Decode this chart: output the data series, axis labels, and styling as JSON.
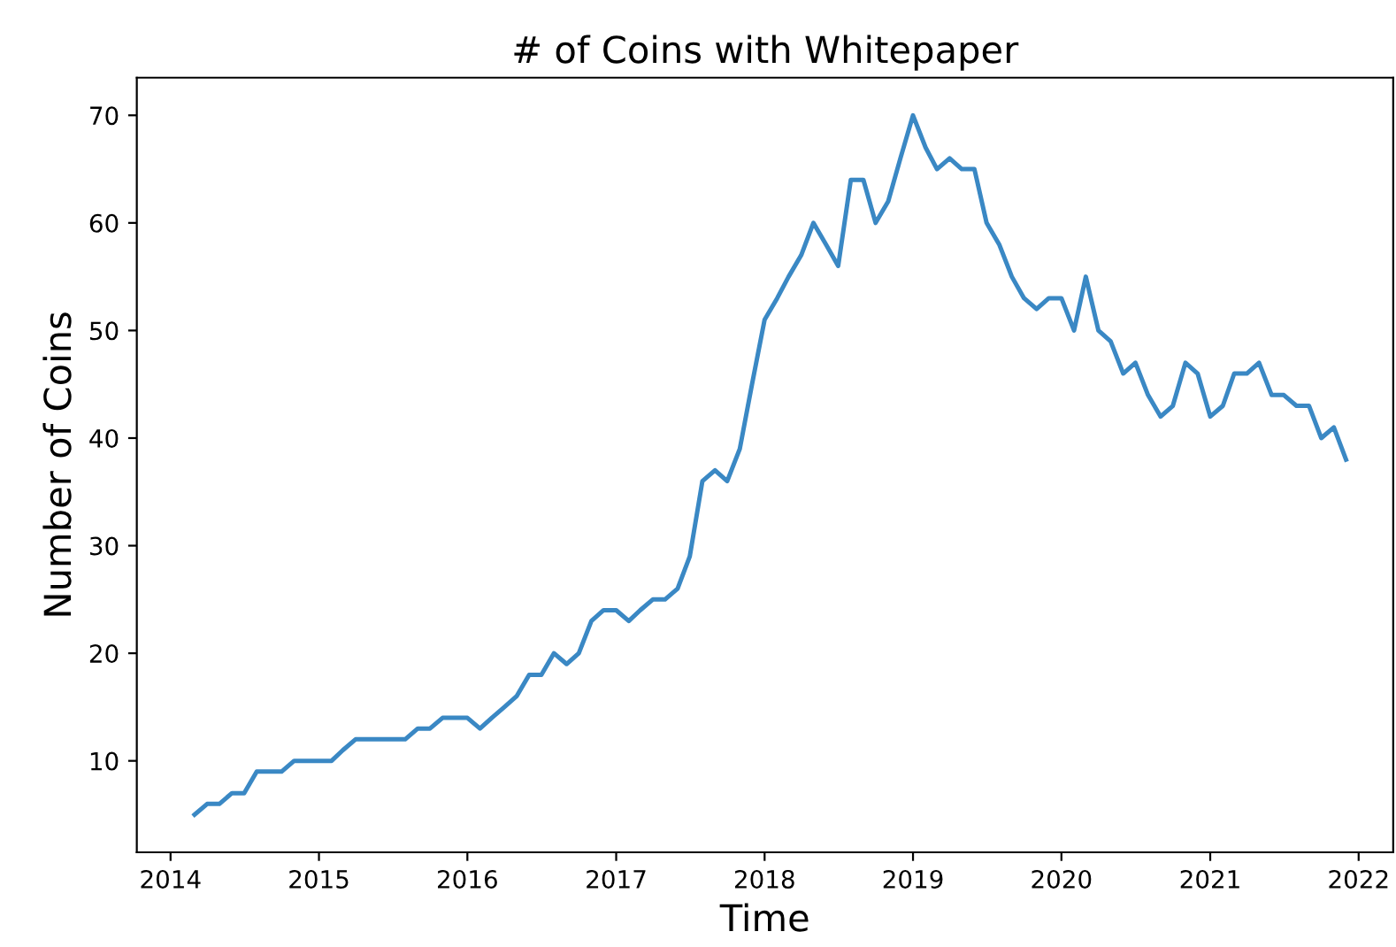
{
  "chart_data": {
    "type": "line",
    "title": "# of Coins with Whitepaper",
    "xlabel": "Time",
    "ylabel": "Number of Coins",
    "x": [
      "2014-03",
      "2014-04",
      "2014-05",
      "2014-06",
      "2014-07",
      "2014-08",
      "2014-09",
      "2014-10",
      "2014-11",
      "2014-12",
      "2015-01",
      "2015-02",
      "2015-03",
      "2015-04",
      "2015-05",
      "2015-06",
      "2015-07",
      "2015-08",
      "2015-09",
      "2015-10",
      "2015-11",
      "2015-12",
      "2016-01",
      "2016-02",
      "2016-03",
      "2016-04",
      "2016-05",
      "2016-06",
      "2016-07",
      "2016-08",
      "2016-09",
      "2016-10",
      "2016-11",
      "2016-12",
      "2017-01",
      "2017-02",
      "2017-03",
      "2017-04",
      "2017-05",
      "2017-06",
      "2017-07",
      "2017-08",
      "2017-09",
      "2017-10",
      "2017-11",
      "2017-12",
      "2018-01",
      "2018-02",
      "2018-03",
      "2018-04",
      "2018-05",
      "2018-06",
      "2018-07",
      "2018-08",
      "2018-09",
      "2018-10",
      "2018-11",
      "2018-12",
      "2019-01",
      "2019-02",
      "2019-03",
      "2019-04",
      "2019-05",
      "2019-06",
      "2019-07",
      "2019-08",
      "2019-09",
      "2019-10",
      "2019-11",
      "2019-12",
      "2020-01",
      "2020-02",
      "2020-03",
      "2020-04",
      "2020-05",
      "2020-06",
      "2020-07",
      "2020-08",
      "2020-09",
      "2020-10",
      "2020-11",
      "2020-12",
      "2021-01",
      "2021-02",
      "2021-03",
      "2021-04",
      "2021-05",
      "2021-06",
      "2021-07",
      "2021-08",
      "2021-09",
      "2021-10",
      "2021-11",
      "2021-12"
    ],
    "series": [
      {
        "color": "#3a88c4",
        "values": [
          5,
          6,
          6,
          7,
          7,
          9,
          9,
          9,
          10,
          10,
          10,
          10,
          11,
          12,
          12,
          12,
          12,
          12,
          13,
          13,
          14,
          14,
          14,
          13,
          14,
          15,
          16,
          18,
          18,
          20,
          19,
          20,
          23,
          24,
          24,
          23,
          24,
          25,
          25,
          26,
          29,
          36,
          37,
          36,
          39,
          45,
          51,
          53,
          55,
          57,
          60,
          58,
          56,
          64,
          64,
          60,
          62,
          66,
          70,
          67,
          65,
          66,
          65,
          65,
          60,
          58,
          55,
          53,
          52,
          53,
          53,
          50,
          55,
          50,
          49,
          46,
          47,
          44,
          42,
          43,
          47,
          46,
          42,
          43,
          46,
          46,
          47,
          44,
          44,
          43,
          43,
          40,
          41,
          38
        ]
      }
    ],
    "xlim": [
      "2013-10-10",
      "2022-03-27"
    ],
    "xticks": [
      {
        "value": "2014-01-01",
        "label": "2014"
      },
      {
        "value": "2015-01-01",
        "label": "2015"
      },
      {
        "value": "2016-01-01",
        "label": "2016"
      },
      {
        "value": "2017-01-01",
        "label": "2017"
      },
      {
        "value": "2018-01-01",
        "label": "2018"
      },
      {
        "value": "2019-01-01",
        "label": "2019"
      },
      {
        "value": "2020-01-01",
        "label": "2020"
      },
      {
        "value": "2021-01-01",
        "label": "2021"
      },
      {
        "value": "2022-01-01",
        "label": "2022"
      }
    ],
    "ylim": [
      1.5,
      73.5
    ],
    "yticks": [
      10,
      20,
      30,
      40,
      50,
      60,
      70
    ],
    "grid": false,
    "legend": false,
    "marker": "none",
    "line_style": "solid"
  }
}
